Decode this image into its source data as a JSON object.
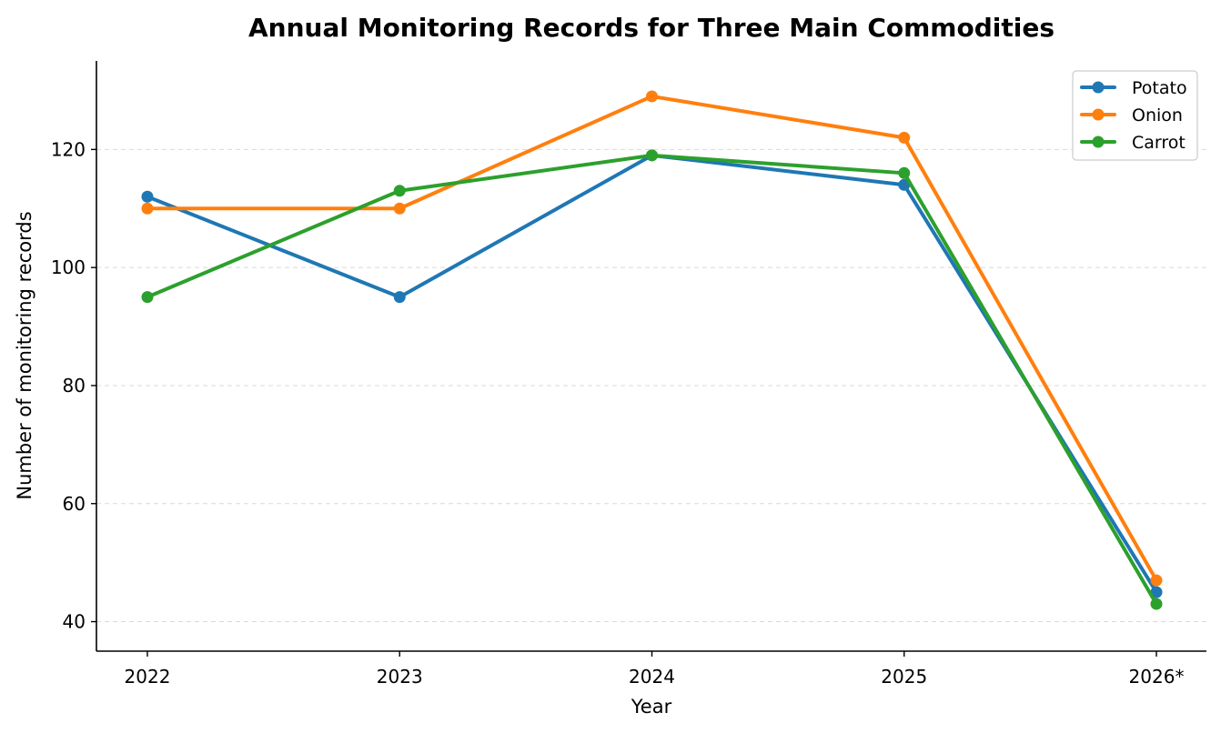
{
  "chart_data": {
    "type": "line",
    "title": "Annual Monitoring Records for Three Main Commodities",
    "xlabel": "Year",
    "ylabel": "Number of monitoring records",
    "categories": [
      "2022",
      "2023",
      "2024",
      "2025",
      "2026*"
    ],
    "ylim": [
      35,
      135
    ],
    "yticks": [
      40,
      60,
      80,
      100,
      120
    ],
    "grid": "horizontal dashed",
    "legend_position": "top-right",
    "series": [
      {
        "name": "Potato",
        "color": "#1f77b4",
        "values": [
          112,
          95,
          119,
          114,
          45
        ]
      },
      {
        "name": "Onion",
        "color": "#ff7f0e",
        "values": [
          110,
          110,
          129,
          122,
          47
        ]
      },
      {
        "name": "Carrot",
        "color": "#2ca02c",
        "values": [
          95,
          113,
          119,
          116,
          43
        ]
      }
    ]
  }
}
